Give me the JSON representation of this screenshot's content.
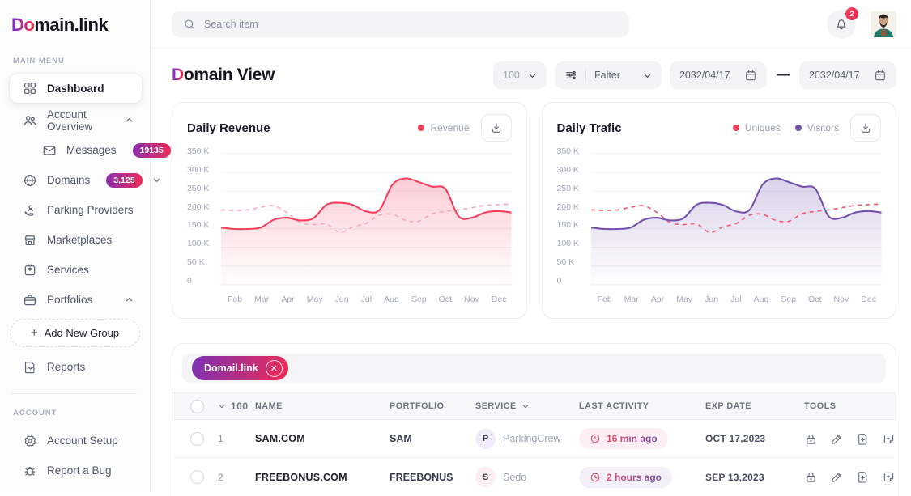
{
  "brand": {
    "logo_accent": "Do",
    "logo_rest": "main.link"
  },
  "topbar": {
    "search_placeholder": "Search item",
    "notification_count": "2"
  },
  "sidebar": {
    "main_menu_label": "MAIN MENU",
    "account_label": "ACCOUNT",
    "items": [
      {
        "label": "Dashboard"
      },
      {
        "label": "Account Overview"
      },
      {
        "label": "Messages",
        "badge": "19135"
      },
      {
        "label": "Domains",
        "badge": "3,125"
      },
      {
        "label": "Parking Providers"
      },
      {
        "label": "Marketplaces"
      },
      {
        "label": "Services"
      },
      {
        "label": "Portfolios"
      },
      {
        "label": "Add New Group",
        "plus": "+"
      },
      {
        "label": "Reports"
      },
      {
        "label": "Account Setup"
      },
      {
        "label": "Report a Bug"
      }
    ]
  },
  "header": {
    "title_accent": "D",
    "title_rest": "omain View",
    "page_size": "100",
    "filter_label": "Falter",
    "date_from": "2032/04/17",
    "date_to": "2032/04/17",
    "date_dash": "—"
  },
  "chart_data": [
    {
      "type": "area",
      "title": "Daily Revenue",
      "legend": [
        {
          "name": "Revenue",
          "color": "#f4405f"
        }
      ],
      "x_labels": [
        "Feb",
        "Mar",
        "Apr",
        "May",
        "Jun",
        "Jul",
        "Aug",
        "Sep",
        "Oct",
        "Nov",
        "Dec"
      ],
      "y_ticks": [
        "350 K",
        "300 K",
        "250 K",
        "200 K",
        "150 K",
        "100 K",
        "50 K",
        "0"
      ],
      "ylim_k": [
        0,
        350
      ],
      "grid": true,
      "series": [
        {
          "name": "Revenue",
          "style": "solid",
          "color": "#f4405f",
          "fill": "#f4405f",
          "values_k": [
            153,
            149,
            149,
            153,
            174,
            179,
            172,
            178,
            214,
            219,
            213,
            196,
            200,
            268,
            284,
            274,
            262,
            256,
            183,
            179,
            193,
            197,
            193
          ]
        },
        {
          "name": "Revenue (dashed)",
          "style": "dashed",
          "color": "#f6a9bb",
          "values_k": [
            200,
            199,
            200,
            207,
            211,
            193,
            166,
            161,
            162,
            140,
            155,
            164,
            186,
            188,
            172,
            170,
            190,
            196,
            200,
            206,
            212,
            214,
            216
          ]
        }
      ]
    },
    {
      "type": "area",
      "title": "Daily Trafic",
      "legend": [
        {
          "name": "Uniques",
          "color": "#f4405f"
        },
        {
          "name": "Visitors",
          "color": "#7452ae"
        }
      ],
      "x_labels": [
        "Feb",
        "Mar",
        "Apr",
        "May",
        "Jun",
        "Jul",
        "Aug",
        "Sep",
        "Oct",
        "Nov",
        "Dec"
      ],
      "y_ticks": [
        "350 K",
        "300 K",
        "250 K",
        "200 K",
        "150 K",
        "100 K",
        "50 K",
        "0"
      ],
      "ylim_k": [
        0,
        350
      ],
      "grid": true,
      "series": [
        {
          "name": "Visitors",
          "style": "solid",
          "color": "#7452ae",
          "fill": "#7452ae",
          "values_k": [
            153,
            149,
            149,
            153,
            174,
            179,
            172,
            178,
            214,
            219,
            213,
            196,
            200,
            268,
            284,
            274,
            262,
            256,
            183,
            179,
            193,
            197,
            193
          ]
        },
        {
          "name": "Uniques",
          "style": "dashed",
          "color": "#f4566f",
          "values_k": [
            200,
            199,
            200,
            207,
            211,
            193,
            166,
            161,
            162,
            140,
            155,
            164,
            186,
            188,
            172,
            170,
            190,
            196,
            200,
            206,
            212,
            214,
            216
          ]
        }
      ]
    }
  ],
  "table": {
    "chip": {
      "label": "Domail.link",
      "close": "✕"
    },
    "header": {
      "select_count": "100",
      "col_name": "NAME",
      "col_portfolio": "PORTFOLIO",
      "col_service": "SERVICE",
      "col_activity": "LAST ACTIVITY",
      "col_exp": "EXP DATE",
      "col_tools": "TOOLS"
    },
    "rows": [
      {
        "num": "1",
        "name": "SAM.COM",
        "portfolio": "SAM",
        "service_initial": "P",
        "service": "ParkingCrew",
        "activity": "16 min ago",
        "exp": "OCT 17,2023"
      },
      {
        "num": "2",
        "name": "FREEBONUS.COM",
        "portfolio": "FREEBONUS",
        "service_initial": "S",
        "service": "Sedo",
        "activity": "2 hours ago",
        "exp": "SEP 13,2023"
      }
    ]
  }
}
